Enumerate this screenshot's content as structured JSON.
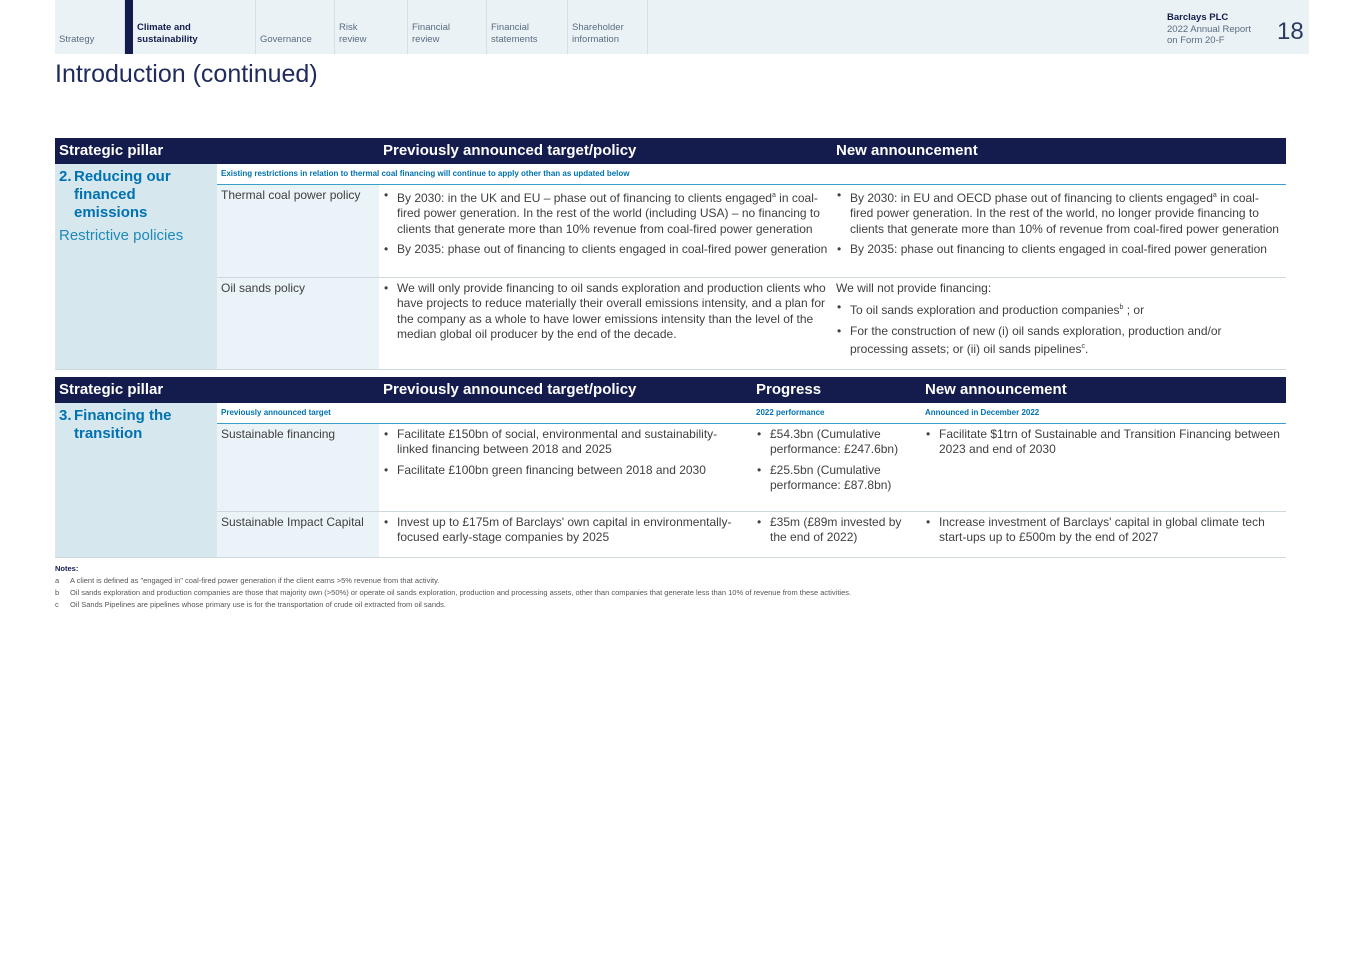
{
  "nav": {
    "tabs": [
      "Strategy",
      "Climate and sustainability",
      "Governance",
      "Risk review",
      "Financial review",
      "Financial statements",
      "Shareholder information"
    ],
    "active": 1
  },
  "brand": {
    "company": "Barclays PLC",
    "line1": "2022 Annual Report",
    "line2": "on Form 20-F",
    "page": "18"
  },
  "title": "Introduction (continued)",
  "table1": {
    "headers": [
      "Strategic pillar",
      "Previously announced target/policy",
      "New announcement"
    ],
    "pillar_num": "2.",
    "pillar_line1": "Reducing our",
    "pillar_line2": "financed emissions",
    "pillar_sub": "Restrictive policies",
    "subheader": "Existing restrictions in relation to thermal coal financing will continue to apply other than as updated below",
    "rows": [
      {
        "topic": "Thermal coal power policy",
        "prev": [
          "By 2030: in the UK and EU – phase out of financing to clients engaged",
          "a",
          " in coal-fired power generation. In the rest of the world (including USA) – no financing to clients that generate more than 10% revenue from coal-fired power generation",
          "By 2035: phase out of financing to clients engaged in coal-fired power generation"
        ],
        "new": [
          "By 2030: in EU and OECD phase out of financing to clients engaged",
          "a",
          " in coal-fired power generation. In the rest of the world, no longer provide financing to clients that generate more than 10% of revenue from coal-fired power generation",
          "By 2035: phase out financing to clients engaged in coal-fired power generation"
        ]
      },
      {
        "topic": "Oil sands policy",
        "prev": [
          "We will only provide financing to oil sands exploration and production clients who have projects to reduce materially their overall emissions intensity, and a plan for the company as a whole to have lower emissions intensity than the level of the median global oil producer by the end of the decade."
        ],
        "new_intro": "We will not provide financing:",
        "new": [
          "To oil sands exploration and production companies",
          "b",
          " ; or",
          "For the construction of new (i) oil sands exploration, production and/or processing assets; or (ii) oil sands pipelines",
          "c",
          "."
        ]
      }
    ]
  },
  "table2": {
    "headers": [
      "Strategic pillar",
      "Previously announced target/policy",
      "Progress",
      "New announcement"
    ],
    "pillar_num": "3.",
    "pillar_line1": "Financing the",
    "pillar_line2": "transition",
    "subheaders": [
      "Previously announced target",
      "2022 performance",
      "Announced in December 2022"
    ],
    "rows": [
      {
        "topic": "Sustainable financing",
        "prev": [
          "Facilitate £150bn of social, environmental and sustainability-linked financing between 2018 and 2025",
          "Facilitate £100bn green financing between 2018 and 2030"
        ],
        "progress": [
          "£54.3bn (Cumulative performance: £247.6bn)",
          "£25.5bn (Cumulative performance: £87.8bn)"
        ],
        "new": [
          "Facilitate $1trn of Sustainable and Transition Financing between 2023 and end of 2030"
        ]
      },
      {
        "topic": "Sustainable Impact Capital",
        "prev": [
          "Invest up to £175m of Barclays' own capital in environmentally-focused early-stage companies by 2025"
        ],
        "progress": [
          "£35m (£89m invested by the end of 2022)"
        ],
        "new": [
          "Increase investment of Barclays' capital in global climate tech start-ups up to £500m by the end of 2027"
        ]
      }
    ]
  },
  "notes": {
    "title": "Notes:",
    "items": [
      {
        "key": "a",
        "text": "A client is defined as \"engaged in\" coal-fired power generation if the client earns  >5% revenue from that activity."
      },
      {
        "key": "b",
        "text": "Oil sands exploration and production companies are those that majority own (>50%) or operate oil sands exploration, production and processing assets, other than companies that generate less than 10% of revenue from these activities."
      },
      {
        "key": "c",
        "text": "Oil Sands Pipelines are pipelines whose primary use is for the transportation of crude oil extracted from oil sands."
      }
    ]
  }
}
